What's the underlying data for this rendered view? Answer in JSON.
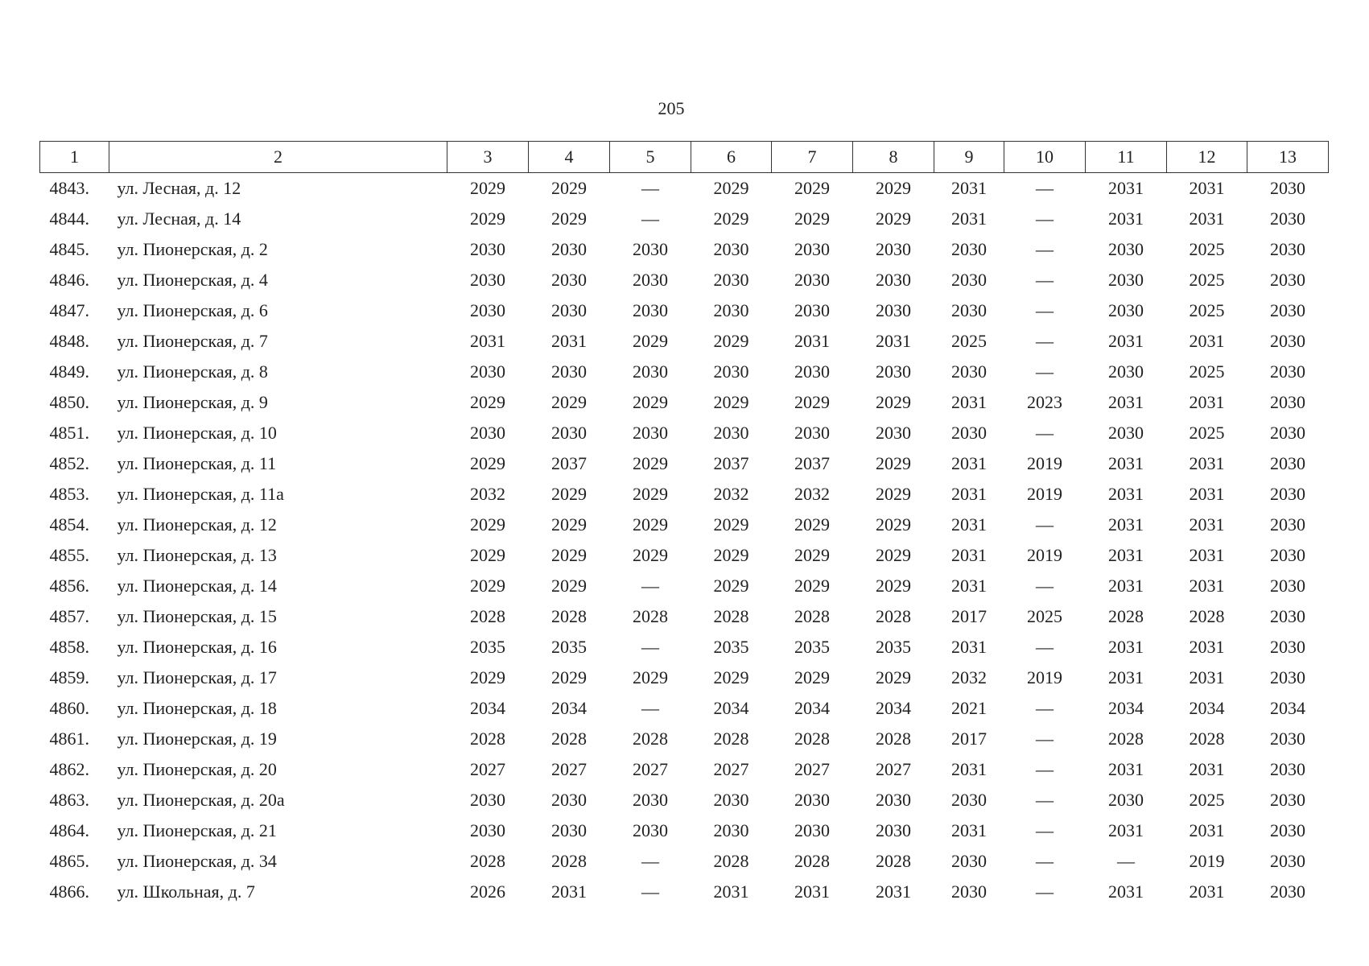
{
  "page_number": "205",
  "table": {
    "header": [
      "1",
      "2",
      "3",
      "4",
      "5",
      "6",
      "7",
      "8",
      "9",
      "10",
      "11",
      "12",
      "13"
    ],
    "rows": [
      [
        "4843.",
        "ул. Лесная, д. 12",
        "2029",
        "2029",
        "—",
        "2029",
        "2029",
        "2029",
        "2031",
        "—",
        "2031",
        "2031",
        "2030"
      ],
      [
        "4844.",
        "ул. Лесная, д. 14",
        "2029",
        "2029",
        "—",
        "2029",
        "2029",
        "2029",
        "2031",
        "—",
        "2031",
        "2031",
        "2030"
      ],
      [
        "4845.",
        "ул. Пионерская, д. 2",
        "2030",
        "2030",
        "2030",
        "2030",
        "2030",
        "2030",
        "2030",
        "—",
        "2030",
        "2025",
        "2030"
      ],
      [
        "4846.",
        "ул. Пионерская, д. 4",
        "2030",
        "2030",
        "2030",
        "2030",
        "2030",
        "2030",
        "2030",
        "—",
        "2030",
        "2025",
        "2030"
      ],
      [
        "4847.",
        "ул. Пионерская, д. 6",
        "2030",
        "2030",
        "2030",
        "2030",
        "2030",
        "2030",
        "2030",
        "—",
        "2030",
        "2025",
        "2030"
      ],
      [
        "4848.",
        "ул. Пионерская, д. 7",
        "2031",
        "2031",
        "2029",
        "2029",
        "2031",
        "2031",
        "2025",
        "—",
        "2031",
        "2031",
        "2030"
      ],
      [
        "4849.",
        "ул. Пионерская, д. 8",
        "2030",
        "2030",
        "2030",
        "2030",
        "2030",
        "2030",
        "2030",
        "—",
        "2030",
        "2025",
        "2030"
      ],
      [
        "4850.",
        "ул. Пионерская, д. 9",
        "2029",
        "2029",
        "2029",
        "2029",
        "2029",
        "2029",
        "2031",
        "2023",
        "2031",
        "2031",
        "2030"
      ],
      [
        "4851.",
        "ул. Пионерская, д. 10",
        "2030",
        "2030",
        "2030",
        "2030",
        "2030",
        "2030",
        "2030",
        "—",
        "2030",
        "2025",
        "2030"
      ],
      [
        "4852.",
        "ул. Пионерская, д. 11",
        "2029",
        "2037",
        "2029",
        "2037",
        "2037",
        "2029",
        "2031",
        "2019",
        "2031",
        "2031",
        "2030"
      ],
      [
        "4853.",
        "ул. Пионерская, д. 11а",
        "2032",
        "2029",
        "2029",
        "2032",
        "2032",
        "2029",
        "2031",
        "2019",
        "2031",
        "2031",
        "2030"
      ],
      [
        "4854.",
        "ул. Пионерская, д. 12",
        "2029",
        "2029",
        "2029",
        "2029",
        "2029",
        "2029",
        "2031",
        "—",
        "2031",
        "2031",
        "2030"
      ],
      [
        "4855.",
        "ул. Пионерская, д. 13",
        "2029",
        "2029",
        "2029",
        "2029",
        "2029",
        "2029",
        "2031",
        "2019",
        "2031",
        "2031",
        "2030"
      ],
      [
        "4856.",
        "ул. Пионерская, д. 14",
        "2029",
        "2029",
        "—",
        "2029",
        "2029",
        "2029",
        "2031",
        "—",
        "2031",
        "2031",
        "2030"
      ],
      [
        "4857.",
        "ул. Пионерская, д. 15",
        "2028",
        "2028",
        "2028",
        "2028",
        "2028",
        "2028",
        "2017",
        "2025",
        "2028",
        "2028",
        "2030"
      ],
      [
        "4858.",
        "ул. Пионерская, д. 16",
        "2035",
        "2035",
        "—",
        "2035",
        "2035",
        "2035",
        "2031",
        "—",
        "2031",
        "2031",
        "2030"
      ],
      [
        "4859.",
        "ул. Пионерская, д. 17",
        "2029",
        "2029",
        "2029",
        "2029",
        "2029",
        "2029",
        "2032",
        "2019",
        "2031",
        "2031",
        "2030"
      ],
      [
        "4860.",
        "ул. Пионерская, д. 18",
        "2034",
        "2034",
        "—",
        "2034",
        "2034",
        "2034",
        "2021",
        "—",
        "2034",
        "2034",
        "2034"
      ],
      [
        "4861.",
        "ул. Пионерская, д. 19",
        "2028",
        "2028",
        "2028",
        "2028",
        "2028",
        "2028",
        "2017",
        "—",
        "2028",
        "2028",
        "2030"
      ],
      [
        "4862.",
        "ул. Пионерская, д. 20",
        "2027",
        "2027",
        "2027",
        "2027",
        "2027",
        "2027",
        "2031",
        "—",
        "2031",
        "2031",
        "2030"
      ],
      [
        "4863.",
        "ул. Пионерская, д. 20а",
        "2030",
        "2030",
        "2030",
        "2030",
        "2030",
        "2030",
        "2030",
        "—",
        "2030",
        "2025",
        "2030"
      ],
      [
        "4864.",
        "ул. Пионерская, д. 21",
        "2030",
        "2030",
        "2030",
        "2030",
        "2030",
        "2030",
        "2031",
        "—",
        "2031",
        "2031",
        "2030"
      ],
      [
        "4865.",
        "ул. Пионерская, д. 34",
        "2028",
        "2028",
        "—",
        "2028",
        "2028",
        "2028",
        "2030",
        "—",
        "—",
        "2019",
        "2030"
      ],
      [
        "4866.",
        "ул. Школьная, д. 7",
        "2026",
        "2031",
        "—",
        "2031",
        "2031",
        "2031",
        "2030",
        "—",
        "2031",
        "2031",
        "2030"
      ]
    ]
  }
}
